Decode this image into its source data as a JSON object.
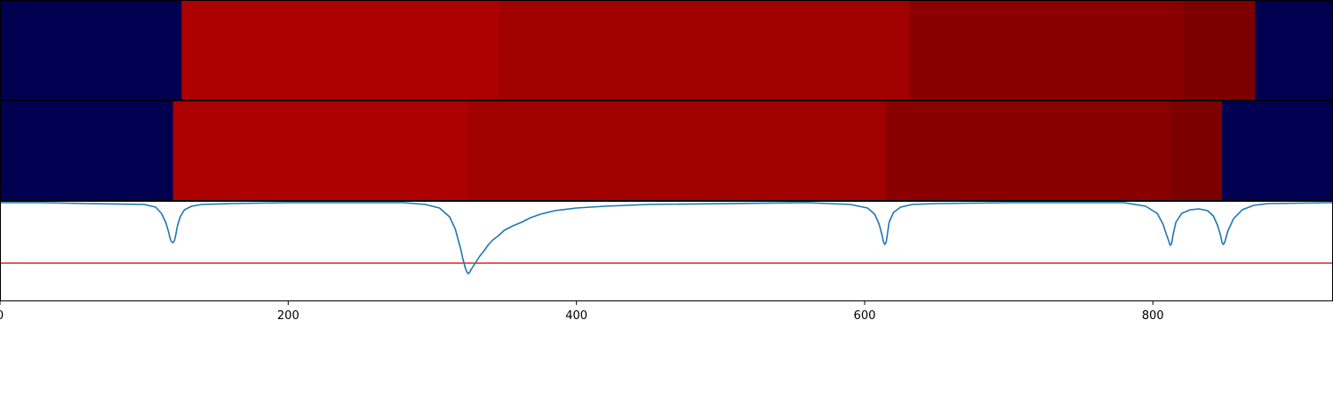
{
  "chart_data": {
    "type": "heatmap",
    "x_range": [
      0,
      925
    ],
    "x_ticks": [
      0,
      200,
      400,
      600,
      800
    ],
    "colors": {
      "background_band": "#000050",
      "line": "#1f77b4",
      "threshold": "#d62728"
    },
    "tracks": [
      {
        "segments": [
          {
            "x0": 0,
            "x1": 126,
            "color": "#000050"
          },
          {
            "x0": 126,
            "x1": 346,
            "color": "#ad0000"
          },
          {
            "x0": 346,
            "x1": 631,
            "color": "#a10000"
          },
          {
            "x0": 631,
            "x1": 821,
            "color": "#8a0000"
          },
          {
            "x0": 821,
            "x1": 871,
            "color": "#7c0000"
          },
          {
            "x0": 871,
            "x1": 925,
            "color": "#000050"
          }
        ]
      },
      {
        "segments": [
          {
            "x0": 0,
            "x1": 120,
            "color": "#000050"
          },
          {
            "x0": 120,
            "x1": 325,
            "color": "#ad0000"
          },
          {
            "x0": 325,
            "x1": 615,
            "color": "#a10000"
          },
          {
            "x0": 615,
            "x1": 812,
            "color": "#8a0000"
          },
          {
            "x0": 812,
            "x1": 848,
            "color": "#7c0000"
          },
          {
            "x0": 848,
            "x1": 925,
            "color": "#000050"
          }
        ]
      }
    ],
    "line_panel": {
      "ylim": [
        -1.1,
        0.02
      ],
      "threshold": -0.68,
      "series": [
        {
          "x": [
            0,
            30,
            60,
            100,
            108,
            112,
            115,
            117,
            118,
            119,
            120,
            121,
            122,
            123,
            125,
            128,
            133,
            140,
            160,
            200,
            280,
            295,
            305,
            312,
            316,
            318,
            320,
            321,
            322,
            323,
            324,
            325,
            326,
            327,
            329,
            331,
            333,
            336,
            339,
            342,
            346,
            350,
            356,
            362,
            368,
            375,
            385,
            400,
            420,
            450,
            560,
            590,
            602,
            607,
            610,
            612,
            613,
            614,
            615,
            616,
            617,
            620,
            625,
            633,
            650,
            700,
            780,
            795,
            803,
            807,
            809,
            811,
            812,
            813,
            814,
            816,
            820,
            826,
            832,
            838,
            842,
            845,
            847,
            848,
            849,
            850,
            852,
            856,
            862,
            870,
            880,
            925
          ],
          "y": [
            0,
            0,
            -0.01,
            -0.02,
            -0.05,
            -0.12,
            -0.22,
            -0.33,
            -0.4,
            -0.44,
            -0.45,
            -0.43,
            -0.36,
            -0.27,
            -0.16,
            -0.08,
            -0.04,
            -0.02,
            -0.01,
            0,
            0,
            -0.02,
            -0.06,
            -0.16,
            -0.3,
            -0.42,
            -0.54,
            -0.62,
            -0.68,
            -0.74,
            -0.78,
            -0.8,
            -0.78,
            -0.75,
            -0.7,
            -0.65,
            -0.6,
            -0.54,
            -0.47,
            -0.42,
            -0.37,
            -0.31,
            -0.26,
            -0.22,
            -0.17,
            -0.13,
            -0.09,
            -0.06,
            -0.04,
            -0.02,
            0,
            -0.02,
            -0.06,
            -0.13,
            -0.24,
            -0.36,
            -0.44,
            -0.47,
            -0.44,
            -0.33,
            -0.22,
            -0.11,
            -0.05,
            -0.02,
            -0.01,
            0,
            0,
            -0.04,
            -0.12,
            -0.24,
            -0.34,
            -0.43,
            -0.48,
            -0.46,
            -0.36,
            -0.22,
            -0.12,
            -0.08,
            -0.07,
            -0.09,
            -0.15,
            -0.26,
            -0.37,
            -0.45,
            -0.47,
            -0.44,
            -0.32,
            -0.18,
            -0.08,
            -0.03,
            -0.01,
            0
          ]
        }
      ]
    }
  }
}
